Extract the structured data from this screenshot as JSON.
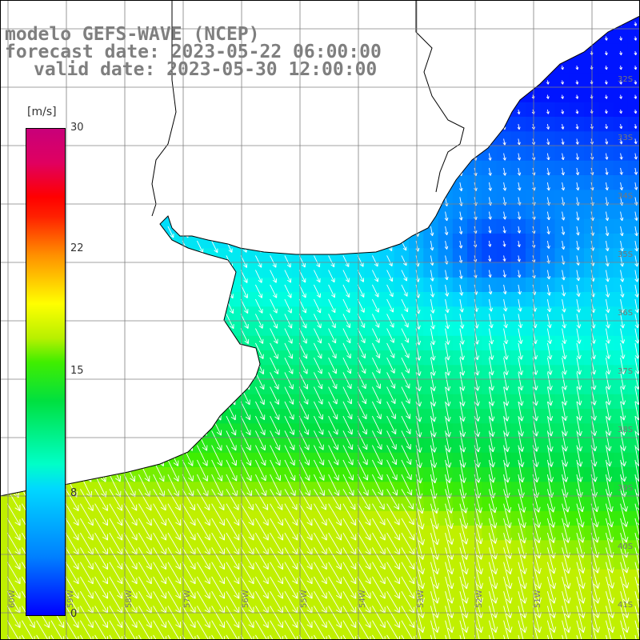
{
  "title": {
    "line1": "modelo GEFS-WAVE (NCEP)",
    "line2": "forecast date: 2023-05-22 06:00:00",
    "line3": "valid date: 2023-05-30 12:00:00"
  },
  "colorbar": {
    "unit": "[m/s]",
    "ticks": [
      "30",
      "22",
      "15",
      "8",
      "0"
    ],
    "tick_values": [
      30,
      22,
      15,
      8,
      0
    ]
  },
  "grid": {
    "lat_labels": [
      "32S",
      "33S",
      "34S",
      "35S",
      "36S",
      "37S",
      "38S",
      "39S",
      "40S",
      "41S"
    ],
    "lon_labels": [
      "60W",
      "59W",
      "58W",
      "57W",
      "56W",
      "55W",
      "54W",
      "53W",
      "52W",
      "51W"
    ]
  },
  "colors": {
    "land": "#ffffff",
    "coast": "#000000",
    "grid": "#808080",
    "arrows": "#ffffff",
    "title": "#7f7f7f"
  }
}
